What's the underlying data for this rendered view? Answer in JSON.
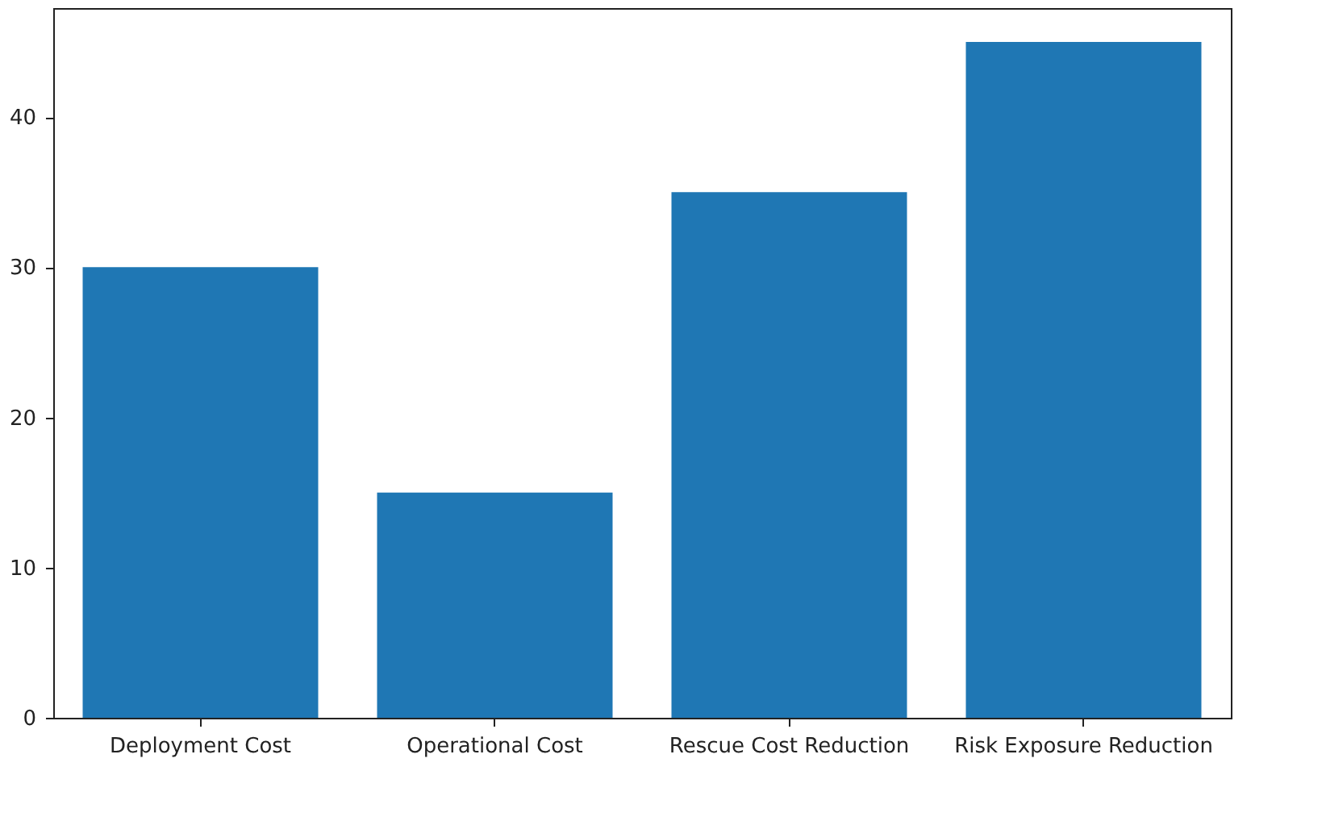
{
  "chart_data": {
    "type": "bar",
    "categories": [
      "Deployment Cost",
      "Operational Cost",
      "Rescue Cost Reduction",
      "Risk Exposure Reduction"
    ],
    "values": [
      30,
      15,
      35,
      45
    ],
    "color": "#1f77b4",
    "ylim": [
      0,
      47.25
    ],
    "yticks": [
      0,
      10,
      20,
      30,
      40
    ],
    "grid": false
  }
}
